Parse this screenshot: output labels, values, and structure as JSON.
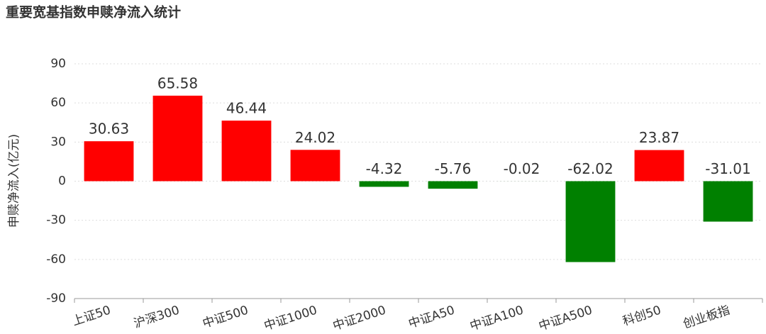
{
  "chart_data": {
    "type": "bar",
    "title": "重要宽基指数申赎净流入统计",
    "y_label": "申赎净流入(亿元)",
    "categories": [
      "上证50",
      "沪深300",
      "中证500",
      "中证1000",
      "中证2000",
      "中证A50",
      "中证A100",
      "中证A500",
      "科创50",
      "创业板指"
    ],
    "values": [
      30.63,
      65.58,
      46.44,
      24.02,
      -4.32,
      -5.76,
      -0.02,
      -62.02,
      23.87,
      -31.01
    ],
    "color_positive": "#ff0000",
    "color_negative": "#008000",
    "ylim": [
      -90,
      90
    ],
    "yticks": [
      -90,
      -60,
      -30,
      0,
      30,
      60,
      90
    ],
    "grid": true
  }
}
